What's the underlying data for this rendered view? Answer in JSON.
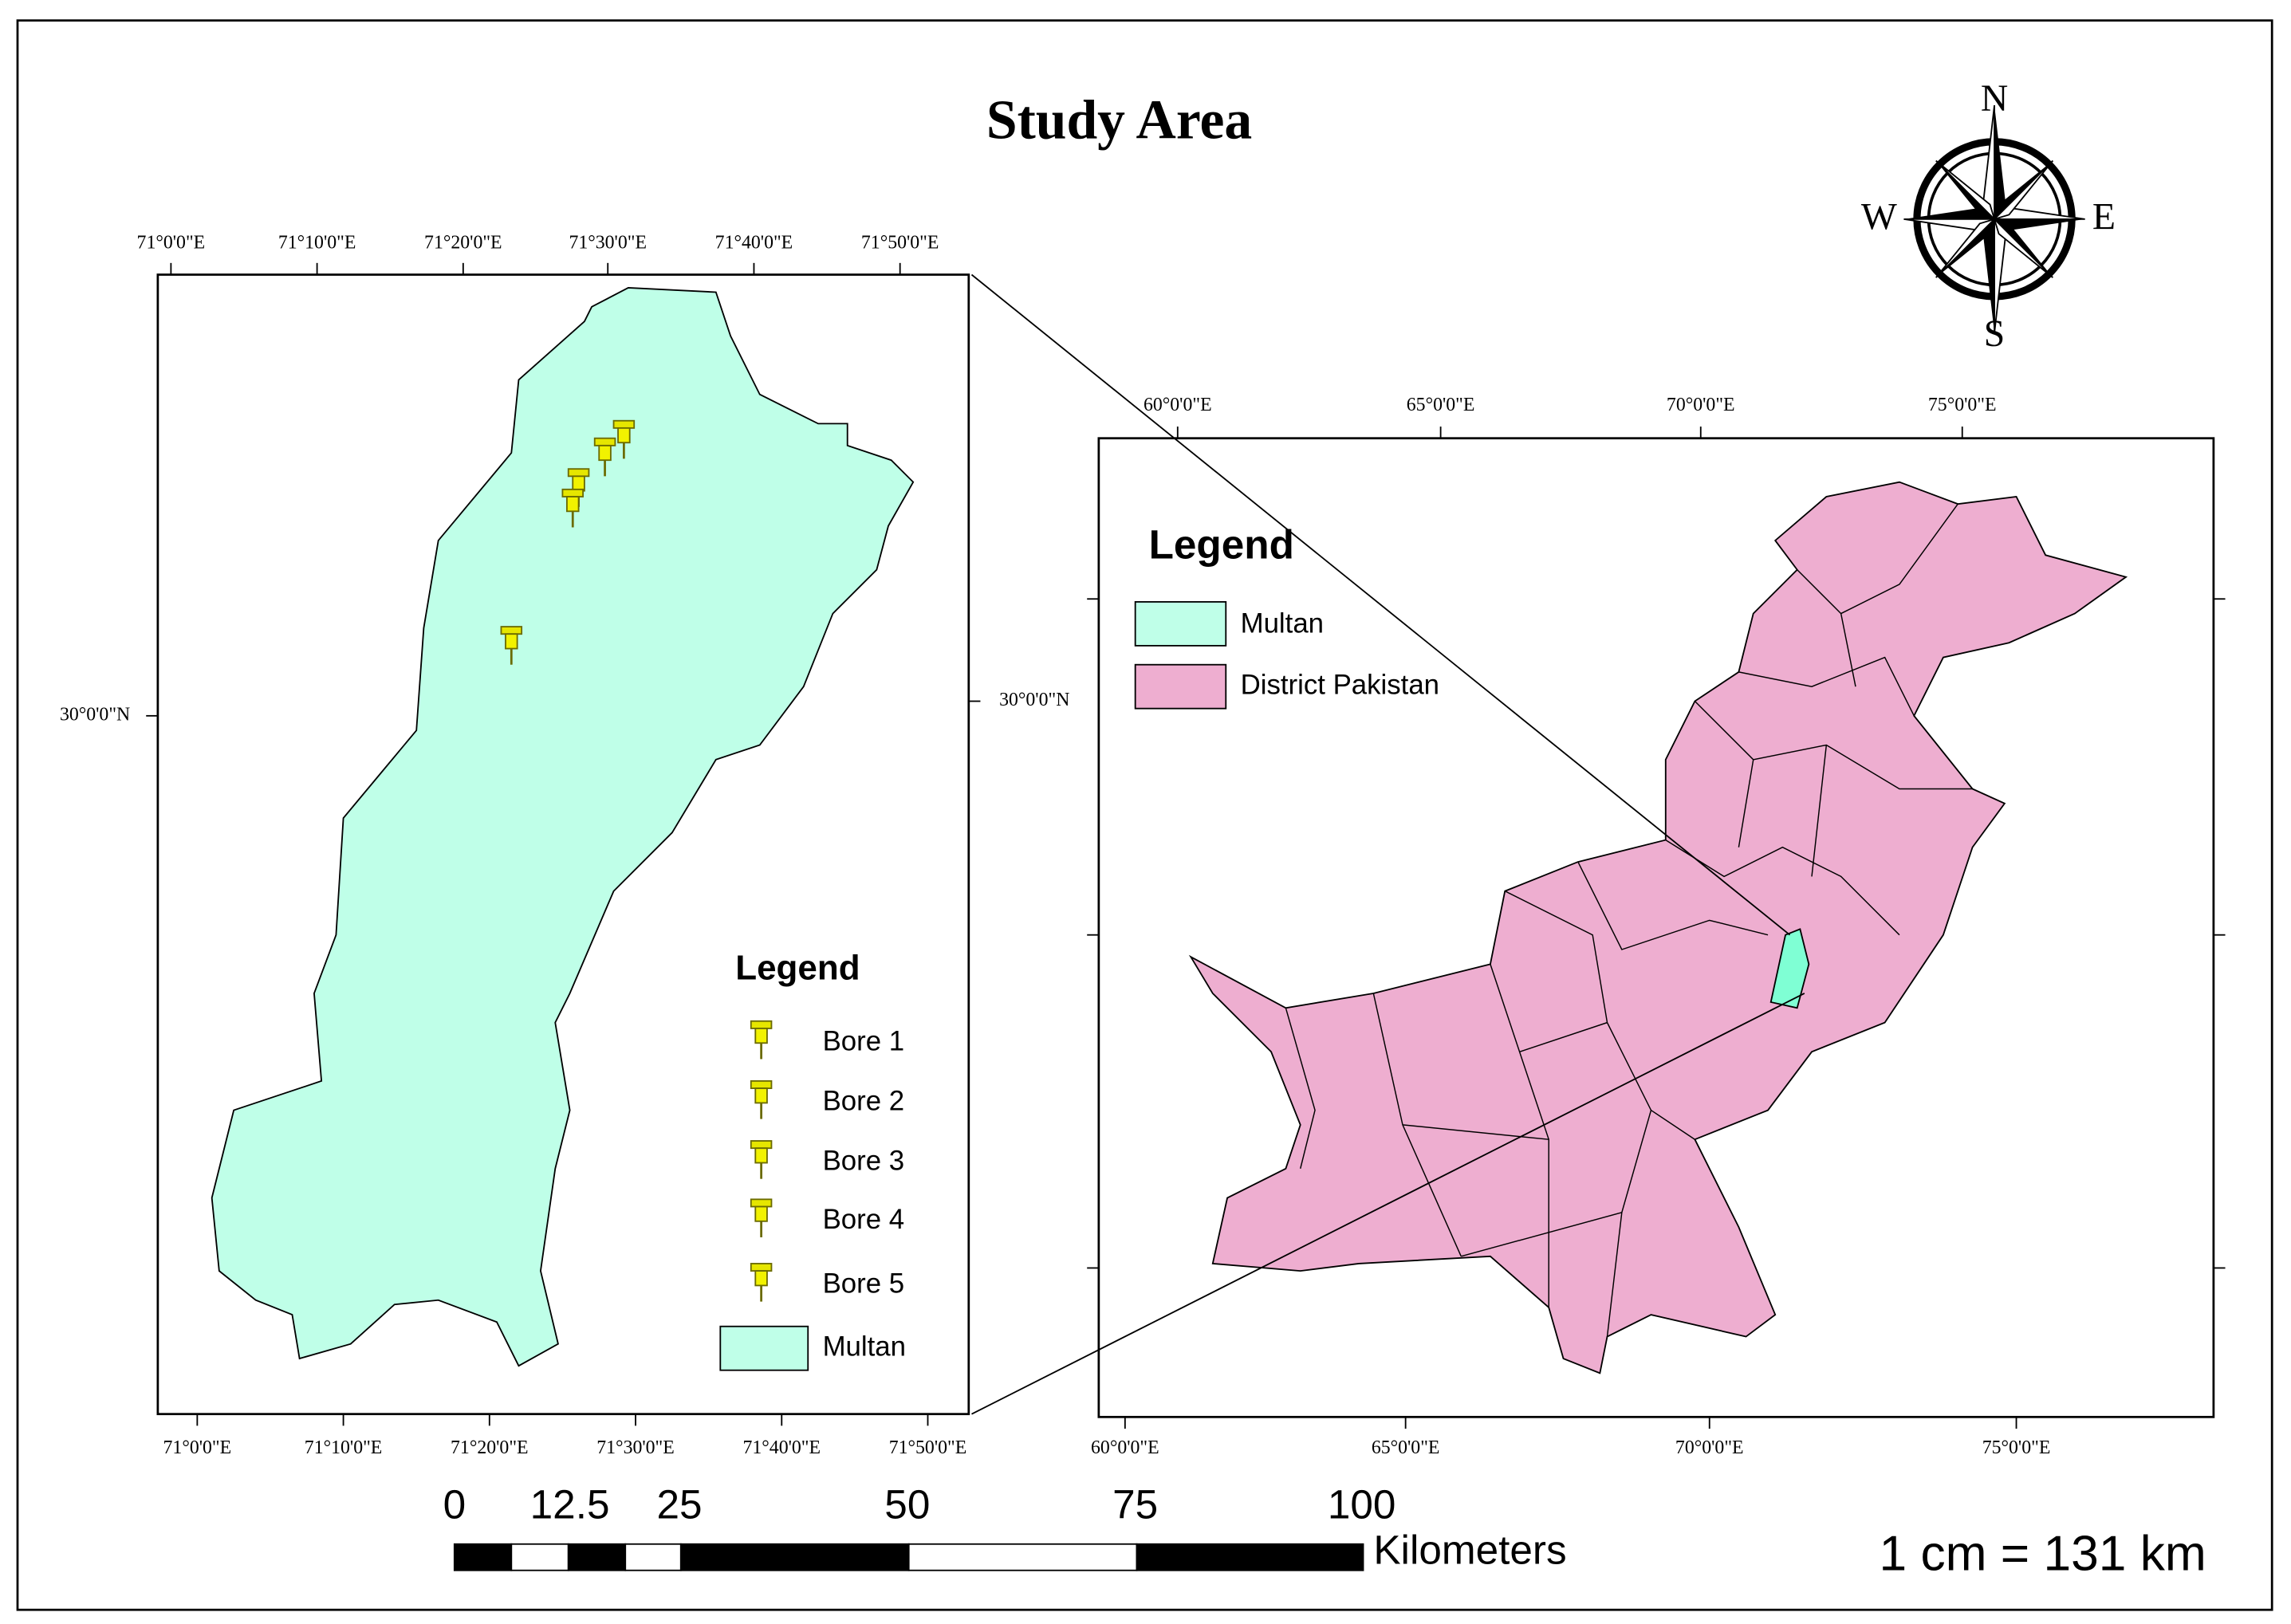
{
  "title": "Study Area",
  "compass": {
    "n": "N",
    "e": "E",
    "s": "S",
    "w": "W"
  },
  "inset_map": {
    "top_ticks": [
      "71°0'0\"E",
      "71°10'0\"E",
      "71°20'0\"E",
      "71°30'0\"E",
      "71°40'0\"E",
      "71°50'0\"E"
    ],
    "bottom_ticks": [
      "71°0'0\"E",
      "71°10'0\"E",
      "71°20'0\"E",
      "71°30'0\"E",
      "71°40'0\"E",
      "71°50'0\"E"
    ],
    "left_tick": "30°0'0\"N",
    "right_tick": "30°0'0\"N",
    "legend": {
      "title": "Legend",
      "items": [
        "Bore 1",
        "Bore 2",
        "Bore 3",
        "Bore 4",
        "Bore 5",
        "Multan"
      ]
    }
  },
  "overview_map": {
    "top_ticks": [
      "60°0'0\"E",
      "65°0'0\"E",
      "70°0'0\"E",
      "75°0'0\"E"
    ],
    "bottom_ticks": [
      "60°0'0\"E",
      "65°0'0\"E",
      "70°0'0\"E",
      "75°0'0\"E"
    ],
    "legend": {
      "title": "Legend",
      "items": [
        "Multan",
        "District Pakistan"
      ]
    }
  },
  "scale_bar": {
    "labels": [
      "0",
      "12.5",
      "25",
      "50",
      "75",
      "100"
    ],
    "unit": "Kilometers"
  },
  "scale_text": "1 cm = 131 km"
}
